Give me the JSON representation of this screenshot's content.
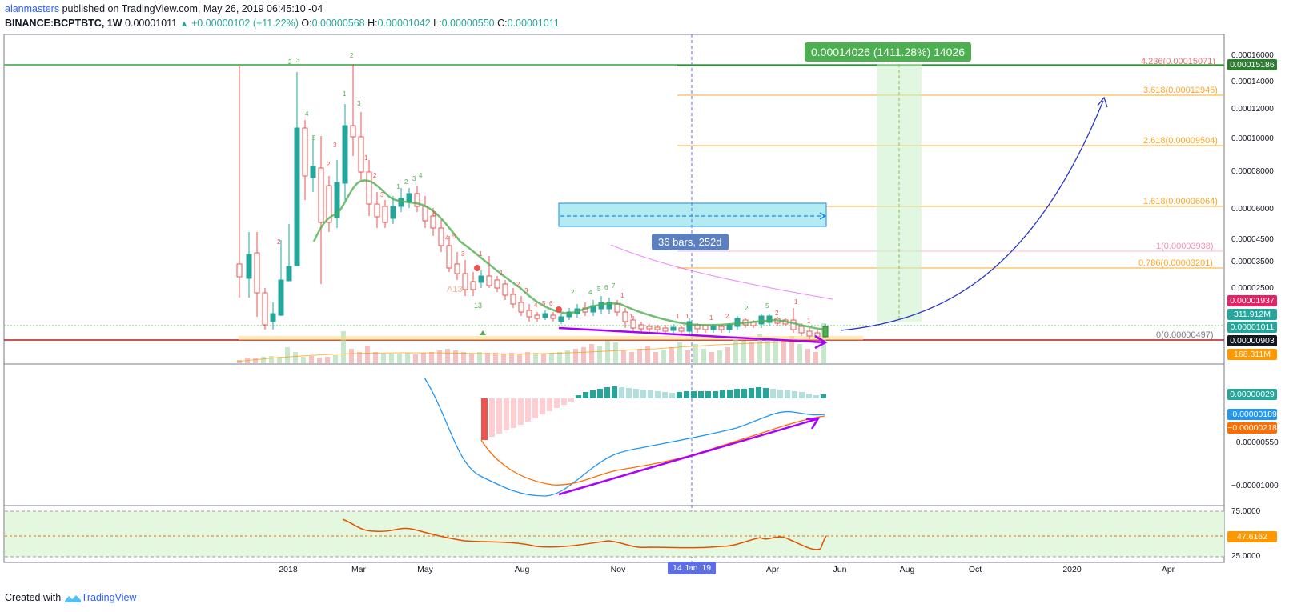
{
  "header": {
    "author": "alanmasters",
    "published": " published on TradingView.com, May 26, 2019 06:45:10 -04",
    "symbol": "BINANCE:BCPTBTC, 1W",
    "last": "0.00001011",
    "change": "+0.00000102 (+11.22%)",
    "o_label": "O:",
    "o_value": "0.00000568",
    "h_label": "H:",
    "h_value": "0.00001042",
    "l_label": "L:",
    "l_value": "0.00000550",
    "c_label": "C:",
    "c_value": "0.00001011"
  },
  "annotations": {
    "profit": "0.00014026 (1411.28%) 14026",
    "bars_range": "36 bars, 252d"
  },
  "fib_levels": [
    {
      "label": "4.236(0.00015071)",
      "color": "#e57373"
    },
    {
      "label": "3.618(0.00012945)",
      "color": "#ffa726"
    },
    {
      "label": "2.618(0.00009504)",
      "color": "#ffa726"
    },
    {
      "label": "1.618(0.00006064)",
      "color": "#ffa726"
    },
    {
      "label": "1(0.00003938)",
      "color": "#f8bbd0"
    },
    {
      "label": "0.786(0.00003201)",
      "color": "#ffa726"
    },
    {
      "label": "0(0.00000497)",
      "color": "#787b86"
    }
  ],
  "price_axis": {
    "ticks": [
      "0.00016000",
      "0.00014000",
      "0.00012000",
      "0.00010000",
      "0.00008000",
      "0.00006000",
      "0.00004500",
      "0.00003500",
      "0.00002500"
    ],
    "tags": [
      {
        "text": "0.00015186",
        "color": "#2e7d32"
      },
      {
        "text": "0.00001937",
        "color": "#e91e63"
      },
      {
        "text": "311.912M",
        "color": "#26a69a"
      },
      {
        "text": "0.00001011",
        "color": "#26a69a"
      },
      {
        "text": "0.00000903",
        "color": "#131722"
      },
      {
        "text": "168.311M",
        "color": "#ff9800"
      }
    ]
  },
  "macd_axis": {
    "ticks": [
      "−0.00000550",
      "−0.00001000"
    ],
    "tags": [
      {
        "text": "0.00000029",
        "color": "#26a69a"
      },
      {
        "text": "−0.00000189",
        "color": "#2196f3"
      },
      {
        "text": "−0.00000218",
        "color": "#ff6d00"
      }
    ]
  },
  "rsi_axis": {
    "ticks": [
      "75.0000",
      "25.0000"
    ],
    "tag": {
      "text": "47.6162",
      "color": "#ff9800"
    }
  },
  "time_axis": {
    "labels": [
      "2018",
      "Mar",
      "May",
      "Aug",
      "Nov",
      "Apr",
      "Jun",
      "Aug",
      "Oct",
      "2020",
      "Apr"
    ],
    "highlight": "14 Jan '19"
  },
  "footer": {
    "created": "Created with",
    "brand": "TradingView"
  },
  "colors": {
    "up": "#26a69a",
    "down": "#ef5350",
    "sma": "#4caf50",
    "ema": "#e040fb",
    "macd": "#2196f3",
    "signal": "#ff6d00",
    "rsi": "#e65100",
    "arrow": "#aa00ff"
  }
}
